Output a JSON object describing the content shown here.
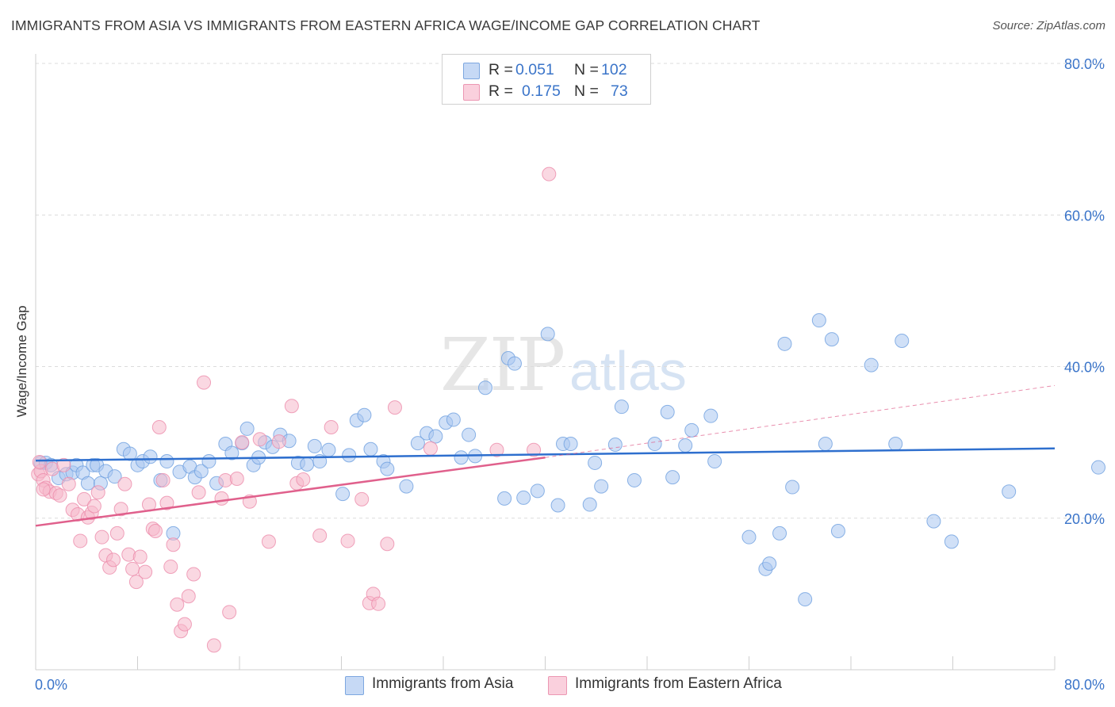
{
  "title": "IMMIGRANTS FROM ASIA VS IMMIGRANTS FROM EASTERN AFRICA WAGE/INCOME GAP CORRELATION CHART",
  "source": "Source: ZipAtlas.com",
  "watermark": "ZIPatlas",
  "legend_top": {
    "rows": [
      {
        "r_label": "R =",
        "r_value": "0.051",
        "n_label": "N =",
        "n_value": "102",
        "color": "#a9c6f0"
      },
      {
        "r_label": "R =",
        "r_value": "0.175",
        "n_label": "N =",
        "n_value": "73",
        "color": "#f5b8cb"
      }
    ]
  },
  "chart_data": {
    "type": "scatter",
    "title": "IMMIGRANTS FROM ASIA VS IMMIGRANTS FROM EASTERN AFRICA WAGE/INCOME GAP CORRELATION CHART",
    "xlabel": "",
    "ylabel": "Wage/Income Gap",
    "xlim": [
      0,
      80
    ],
    "ylim": [
      0,
      80
    ],
    "x_tick_labels": [
      "0.0%",
      "80.0%"
    ],
    "y_tick_labels": [
      "20.0%",
      "40.0%",
      "60.0%",
      "80.0%"
    ],
    "y_ticks": [
      20,
      40,
      60,
      80
    ],
    "grid": true,
    "legend_placement": "bottom",
    "series": [
      {
        "name": "Immigrants from Asia",
        "color": "#6fa0e0",
        "fill": "#a9c6f0",
        "trend": {
          "x": [
            0,
            80
          ],
          "y": [
            27.6,
            29.2
          ],
          "color": "#2e6fce",
          "dashed_extension": false
        },
        "points": [
          [
            0.4,
            27.3
          ],
          [
            0.8,
            27.3
          ],
          [
            1.2,
            27.0
          ],
          [
            1.8,
            25.3
          ],
          [
            2.4,
            25.8
          ],
          [
            2.9,
            26.0
          ],
          [
            3.2,
            27.0
          ],
          [
            3.7,
            26.0
          ],
          [
            4.1,
            24.6
          ],
          [
            4.5,
            27.0
          ],
          [
            4.8,
            27.0
          ],
          [
            5.1,
            24.6
          ],
          [
            5.5,
            26.2
          ],
          [
            6.2,
            25.5
          ],
          [
            6.9,
            29.1
          ],
          [
            7.4,
            28.5
          ],
          [
            8.0,
            27.0
          ],
          [
            8.4,
            27.5
          ],
          [
            9.0,
            28.1
          ],
          [
            9.8,
            25.0
          ],
          [
            10.3,
            27.5
          ],
          [
            10.8,
            18.0
          ],
          [
            11.3,
            26.1
          ],
          [
            12.1,
            26.8
          ],
          [
            12.5,
            25.4
          ],
          [
            13.0,
            26.2
          ],
          [
            13.6,
            27.5
          ],
          [
            14.2,
            24.6
          ],
          [
            14.9,
            29.8
          ],
          [
            15.4,
            28.6
          ],
          [
            16.2,
            29.9
          ],
          [
            16.6,
            31.8
          ],
          [
            17.1,
            27.0
          ],
          [
            17.5,
            28.0
          ],
          [
            18.0,
            30.0
          ],
          [
            18.6,
            29.4
          ],
          [
            19.2,
            31.0
          ],
          [
            19.9,
            30.2
          ],
          [
            20.6,
            27.3
          ],
          [
            21.3,
            27.1
          ],
          [
            21.9,
            29.5
          ],
          [
            22.3,
            27.5
          ],
          [
            23.0,
            29.0
          ],
          [
            24.1,
            23.2
          ],
          [
            24.6,
            28.3
          ],
          [
            25.2,
            32.9
          ],
          [
            25.8,
            33.6
          ],
          [
            26.3,
            29.1
          ],
          [
            27.3,
            27.5
          ],
          [
            27.6,
            26.5
          ],
          [
            29.1,
            24.2
          ],
          [
            30.0,
            29.9
          ],
          [
            30.7,
            31.2
          ],
          [
            31.4,
            30.8
          ],
          [
            32.2,
            32.6
          ],
          [
            32.8,
            33.0
          ],
          [
            33.4,
            28.0
          ],
          [
            34.0,
            31.0
          ],
          [
            34.5,
            28.2
          ],
          [
            35.3,
            37.2
          ],
          [
            36.8,
            22.6
          ],
          [
            37.1,
            41.1
          ],
          [
            37.6,
            40.4
          ],
          [
            38.3,
            22.7
          ],
          [
            39.4,
            23.6
          ],
          [
            40.2,
            44.3
          ],
          [
            41.0,
            21.7
          ],
          [
            41.4,
            29.8
          ],
          [
            42.0,
            29.8
          ],
          [
            43.5,
            21.8
          ],
          [
            43.9,
            27.3
          ],
          [
            44.4,
            24.2
          ],
          [
            45.5,
            29.7
          ],
          [
            46.0,
            34.7
          ],
          [
            47.0,
            25.0
          ],
          [
            48.6,
            29.8
          ],
          [
            49.6,
            34.0
          ],
          [
            50.0,
            25.4
          ],
          [
            51.0,
            29.6
          ],
          [
            51.5,
            31.6
          ],
          [
            53.0,
            33.5
          ],
          [
            53.3,
            27.5
          ],
          [
            56.0,
            17.5
          ],
          [
            57.3,
            13.3
          ],
          [
            57.6,
            14.0
          ],
          [
            58.4,
            18.0
          ],
          [
            58.8,
            43.0
          ],
          [
            59.4,
            24.1
          ],
          [
            60.4,
            9.3
          ],
          [
            61.5,
            46.1
          ],
          [
            62.0,
            29.8
          ],
          [
            62.5,
            43.6
          ],
          [
            63.0,
            18.3
          ],
          [
            65.6,
            40.2
          ],
          [
            67.5,
            29.8
          ],
          [
            68.0,
            43.4
          ],
          [
            70.5,
            19.6
          ],
          [
            71.9,
            16.9
          ],
          [
            76.4,
            23.5
          ],
          [
            83.8,
            26.7
          ]
        ]
      },
      {
        "name": "Immigrants from Eastern Africa",
        "color": "#ec8cab",
        "fill": "#f5b8cb",
        "trend": {
          "x": [
            0,
            40
          ],
          "y": [
            19.0,
            28.0
          ],
          "color": "#e0608c",
          "dashed_extension": {
            "x": [
              40,
              80
            ],
            "y": [
              28.0,
              37.5
            ]
          }
        },
        "points": [
          [
            0.2,
            25.8
          ],
          [
            0.4,
            26.2
          ],
          [
            0.6,
            25.0
          ],
          [
            0.8,
            24.0
          ],
          [
            1.1,
            23.5
          ],
          [
            1.3,
            26.5
          ],
          [
            1.6,
            23.3
          ],
          [
            1.9,
            23.0
          ],
          [
            2.2,
            27.0
          ],
          [
            2.6,
            24.5
          ],
          [
            2.9,
            21.1
          ],
          [
            3.3,
            20.5
          ],
          [
            3.5,
            17.0
          ],
          [
            3.8,
            22.5
          ],
          [
            4.1,
            20.1
          ],
          [
            4.4,
            20.7
          ],
          [
            4.6,
            21.6
          ],
          [
            4.9,
            23.4
          ],
          [
            5.2,
            17.5
          ],
          [
            5.5,
            15.1
          ],
          [
            5.8,
            13.5
          ],
          [
            6.1,
            14.5
          ],
          [
            6.4,
            18.0
          ],
          [
            6.7,
            21.2
          ],
          [
            7.0,
            24.5
          ],
          [
            7.3,
            15.2
          ],
          [
            7.6,
            13.3
          ],
          [
            7.9,
            11.6
          ],
          [
            8.2,
            14.9
          ],
          [
            8.6,
            12.9
          ],
          [
            8.9,
            21.8
          ],
          [
            9.2,
            18.6
          ],
          [
            9.4,
            18.3
          ],
          [
            9.7,
            32.0
          ],
          [
            10.0,
            25.0
          ],
          [
            10.3,
            22.0
          ],
          [
            10.6,
            13.6
          ],
          [
            10.8,
            16.5
          ],
          [
            11.1,
            8.6
          ],
          [
            11.4,
            5.1
          ],
          [
            11.7,
            6.0
          ],
          [
            12.0,
            9.7
          ],
          [
            12.4,
            12.6
          ],
          [
            12.8,
            23.4
          ],
          [
            13.2,
            37.9
          ],
          [
            14.0,
            3.2
          ],
          [
            14.6,
            22.6
          ],
          [
            14.9,
            25.0
          ],
          [
            15.2,
            7.6
          ],
          [
            15.8,
            25.2
          ],
          [
            16.2,
            30.0
          ],
          [
            16.8,
            22.2
          ],
          [
            17.6,
            30.4
          ],
          [
            18.3,
            16.9
          ],
          [
            19.1,
            30.1
          ],
          [
            20.1,
            34.8
          ],
          [
            20.5,
            24.6
          ],
          [
            21.0,
            25.1
          ],
          [
            22.3,
            17.7
          ],
          [
            23.2,
            32.0
          ],
          [
            24.5,
            17.0
          ],
          [
            25.6,
            22.5
          ],
          [
            26.2,
            8.8
          ],
          [
            26.5,
            10.0
          ],
          [
            26.9,
            8.7
          ],
          [
            27.6,
            16.6
          ],
          [
            28.2,
            34.6
          ],
          [
            31.0,
            29.2
          ],
          [
            36.2,
            29.0
          ],
          [
            39.1,
            29.0
          ],
          [
            40.3,
            65.4
          ],
          [
            0.3,
            27.4
          ],
          [
            0.6,
            23.8
          ]
        ]
      }
    ]
  },
  "legend_bottom": {
    "items": [
      {
        "label": "Immigrants from Asia",
        "color": "#a9c6f0"
      },
      {
        "label": "Immigrants from Eastern Africa",
        "color": "#f5b8cb"
      }
    ]
  }
}
